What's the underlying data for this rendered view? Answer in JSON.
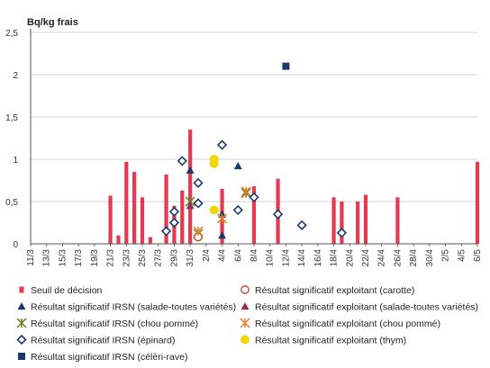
{
  "chart_data": {
    "type": "bar",
    "unit_label": "Bq/kg frais",
    "ylim": [
      0,
      2.5
    ],
    "y_ticks": [
      "0",
      "0,5",
      "1",
      "1,5",
      "2",
      "2,5"
    ],
    "y_tick_values": [
      0,
      0.5,
      1,
      1.5,
      2,
      2.5
    ],
    "grid": true,
    "legend_position": "bottom",
    "categories": [
      "11/3",
      "12/3",
      "13/3",
      "14/3",
      "15/3",
      "16/3",
      "17/3",
      "18/3",
      "19/3",
      "20/3",
      "21/3",
      "22/3",
      "23/3",
      "24/3",
      "25/3",
      "26/3",
      "27/3",
      "28/3",
      "29/3",
      "30/3",
      "31/3",
      "1/4",
      "2/4",
      "3/4",
      "4/4",
      "5/4",
      "6/4",
      "7/4",
      "8/4",
      "9/4",
      "10/4",
      "11/4",
      "12/4",
      "13/4",
      "14/4",
      "15/4",
      "16/4",
      "17/4",
      "18/4",
      "19/4",
      "20/4",
      "21/4",
      "22/4",
      "23/4",
      "24/4",
      "25/4",
      "26/4",
      "27/4",
      "28/4",
      "29/4",
      "30/4",
      "1/5",
      "2/5",
      "3/5",
      "4/5",
      "5/5",
      "6/5"
    ],
    "x_tick_labels": [
      "11/3",
      "13/3",
      "15/3",
      "17/3",
      "19/3",
      "21/3",
      "23/3",
      "25/3",
      "27/3",
      "29/3",
      "31/3",
      "2/4",
      "4/4",
      "6/4",
      "8/4",
      "10/4",
      "12/4",
      "14/4",
      "16/4",
      "18/4",
      "20/4",
      "22/4",
      "24/4",
      "26/4",
      "28/4",
      "30/4",
      "2/5",
      "4/5",
      "6/5"
    ],
    "colors": {
      "bar": "#e8384f",
      "irsn_salade": "#1b3a6b",
      "irsn_chou": "#6b7d1e",
      "irsn_epinard": "#1b3a6b",
      "irsn_celeri": "#1b3a6b",
      "exp_carotte": "#c0392b",
      "exp_salade": "#9b2a5a",
      "exp_chou": "#e67e22",
      "exp_thym": "#f2d600",
      "grid": "#c8c8c8",
      "axis": "#555555"
    },
    "bars": {
      "name": "Seuil de décision",
      "points": [
        {
          "x": "21/3",
          "y": 0.57
        },
        {
          "x": "22/3",
          "y": 0.1
        },
        {
          "x": "23/3",
          "y": 0.97
        },
        {
          "x": "24/3",
          "y": 0.85
        },
        {
          "x": "25/3",
          "y": 0.55
        },
        {
          "x": "26/3",
          "y": 0.08
        },
        {
          "x": "28/3",
          "y": 0.82
        },
        {
          "x": "29/3",
          "y": 0.45
        },
        {
          "x": "30/3",
          "y": 0.63
        },
        {
          "x": "31/3",
          "y": 1.35
        },
        {
          "x": "4/4",
          "y": 0.65
        },
        {
          "x": "8/4",
          "y": 0.68
        },
        {
          "x": "11/4",
          "y": 0.77
        },
        {
          "x": "18/4",
          "y": 0.55
        },
        {
          "x": "19/4",
          "y": 0.5
        },
        {
          "x": "21/4",
          "y": 0.5
        },
        {
          "x": "22/4",
          "y": 0.58
        },
        {
          "x": "26/4",
          "y": 0.55
        },
        {
          "x": "6/5",
          "y": 0.97
        }
      ]
    },
    "series": [
      {
        "name": "Résultat significatif IRSN (salade-toutes variétés)",
        "marker": "triangle",
        "filled": true,
        "color_key": "irsn_salade",
        "points": [
          {
            "x": "31/3",
            "y": 0.87
          },
          {
            "x": "4/4",
            "y": 0.1
          },
          {
            "x": "4/4",
            "y": 0.35
          },
          {
            "x": "6/4",
            "y": 0.92
          }
        ]
      },
      {
        "name": "Résultat significatif IRSN (chou pommé)",
        "marker": "asterisk",
        "filled": false,
        "color_key": "irsn_chou",
        "points": [
          {
            "x": "31/3",
            "y": 0.5
          },
          {
            "x": "1/4",
            "y": 0.12
          },
          {
            "x": "7/4",
            "y": 0.6
          }
        ]
      },
      {
        "name": "Résultat significatif IRSN (épinard)",
        "marker": "diamond",
        "filled": false,
        "color_key": "irsn_epinard",
        "points": [
          {
            "x": "28/3",
            "y": 0.15
          },
          {
            "x": "29/3",
            "y": 0.25
          },
          {
            "x": "29/3",
            "y": 0.38
          },
          {
            "x": "30/3",
            "y": 0.98
          },
          {
            "x": "1/4",
            "y": 0.72
          },
          {
            "x": "1/4",
            "y": 0.48
          },
          {
            "x": "4/4",
            "y": 1.17
          },
          {
            "x": "6/4",
            "y": 0.4
          },
          {
            "x": "8/4",
            "y": 0.55
          },
          {
            "x": "11/4",
            "y": 0.35
          },
          {
            "x": "14/4",
            "y": 0.22
          },
          {
            "x": "19/4",
            "y": 0.13
          }
        ]
      },
      {
        "name": "Résultat significatif IRSN (célèri-rave)",
        "marker": "square",
        "filled": true,
        "color_key": "irsn_celeri",
        "points": [
          {
            "x": "12/4",
            "y": 2.1
          }
        ]
      },
      {
        "name": "Résultat significatif exploitant (carotte)",
        "marker": "circle",
        "filled": false,
        "color_key": "exp_carotte",
        "points": [
          {
            "x": "1/4",
            "y": 0.08
          }
        ]
      },
      {
        "name": "Résultat significatif exploitant (salade-toutes variétés)",
        "marker": "triangle",
        "filled": true,
        "color_key": "exp_salade",
        "points": [
          {
            "x": "31/3",
            "y": 0.45
          }
        ]
      },
      {
        "name": "Résultat significatif exploitant (chou pommé)",
        "marker": "asterisk",
        "filled": false,
        "color_key": "exp_chou",
        "points": [
          {
            "x": "1/4",
            "y": 0.15
          },
          {
            "x": "4/4",
            "y": 0.3
          },
          {
            "x": "7/4",
            "y": 0.62
          }
        ]
      },
      {
        "name": "Résultat significatif exploitant (thym)",
        "marker": "circle",
        "filled": true,
        "color_key": "exp_thym",
        "points": [
          {
            "x": "3/4",
            "y": 1.0
          },
          {
            "x": "3/4",
            "y": 0.95
          },
          {
            "x": "3/4",
            "y": 0.4
          }
        ]
      }
    ],
    "legend": {
      "left": [
        {
          "label": "Seuil de décision",
          "marker": "bar",
          "color_key": "bar"
        },
        {
          "label": "Résultat significatif IRSN (salade-toutes variétés)",
          "marker": "triangle",
          "color_key": "irsn_salade"
        },
        {
          "label": "Résultat significatif IRSN (chou pommé)",
          "marker": "asterisk",
          "color_key": "irsn_chou"
        },
        {
          "label": "Résultat significatif IRSN (épinard)",
          "marker": "diamond",
          "color_key": "irsn_epinard"
        },
        {
          "label": "Résultat significatif IRSN (célèri-rave)",
          "marker": "square",
          "color_key": "irsn_celeri"
        }
      ],
      "right": [
        {
          "label": "Résultat significatif exploitant (carotte)",
          "marker": "circle-open",
          "color_key": "exp_carotte"
        },
        {
          "label": "Résultat significatif exploitant (salade-toutes variétés)",
          "marker": "triangle",
          "color_key": "exp_salade"
        },
        {
          "label": "Résultat significatif exploitant (chou pommé)",
          "marker": "asterisk",
          "color_key": "exp_chou"
        },
        {
          "label": "Résultat significatif exploitant (thym)",
          "marker": "circle",
          "color_key": "exp_thym"
        }
      ]
    }
  }
}
